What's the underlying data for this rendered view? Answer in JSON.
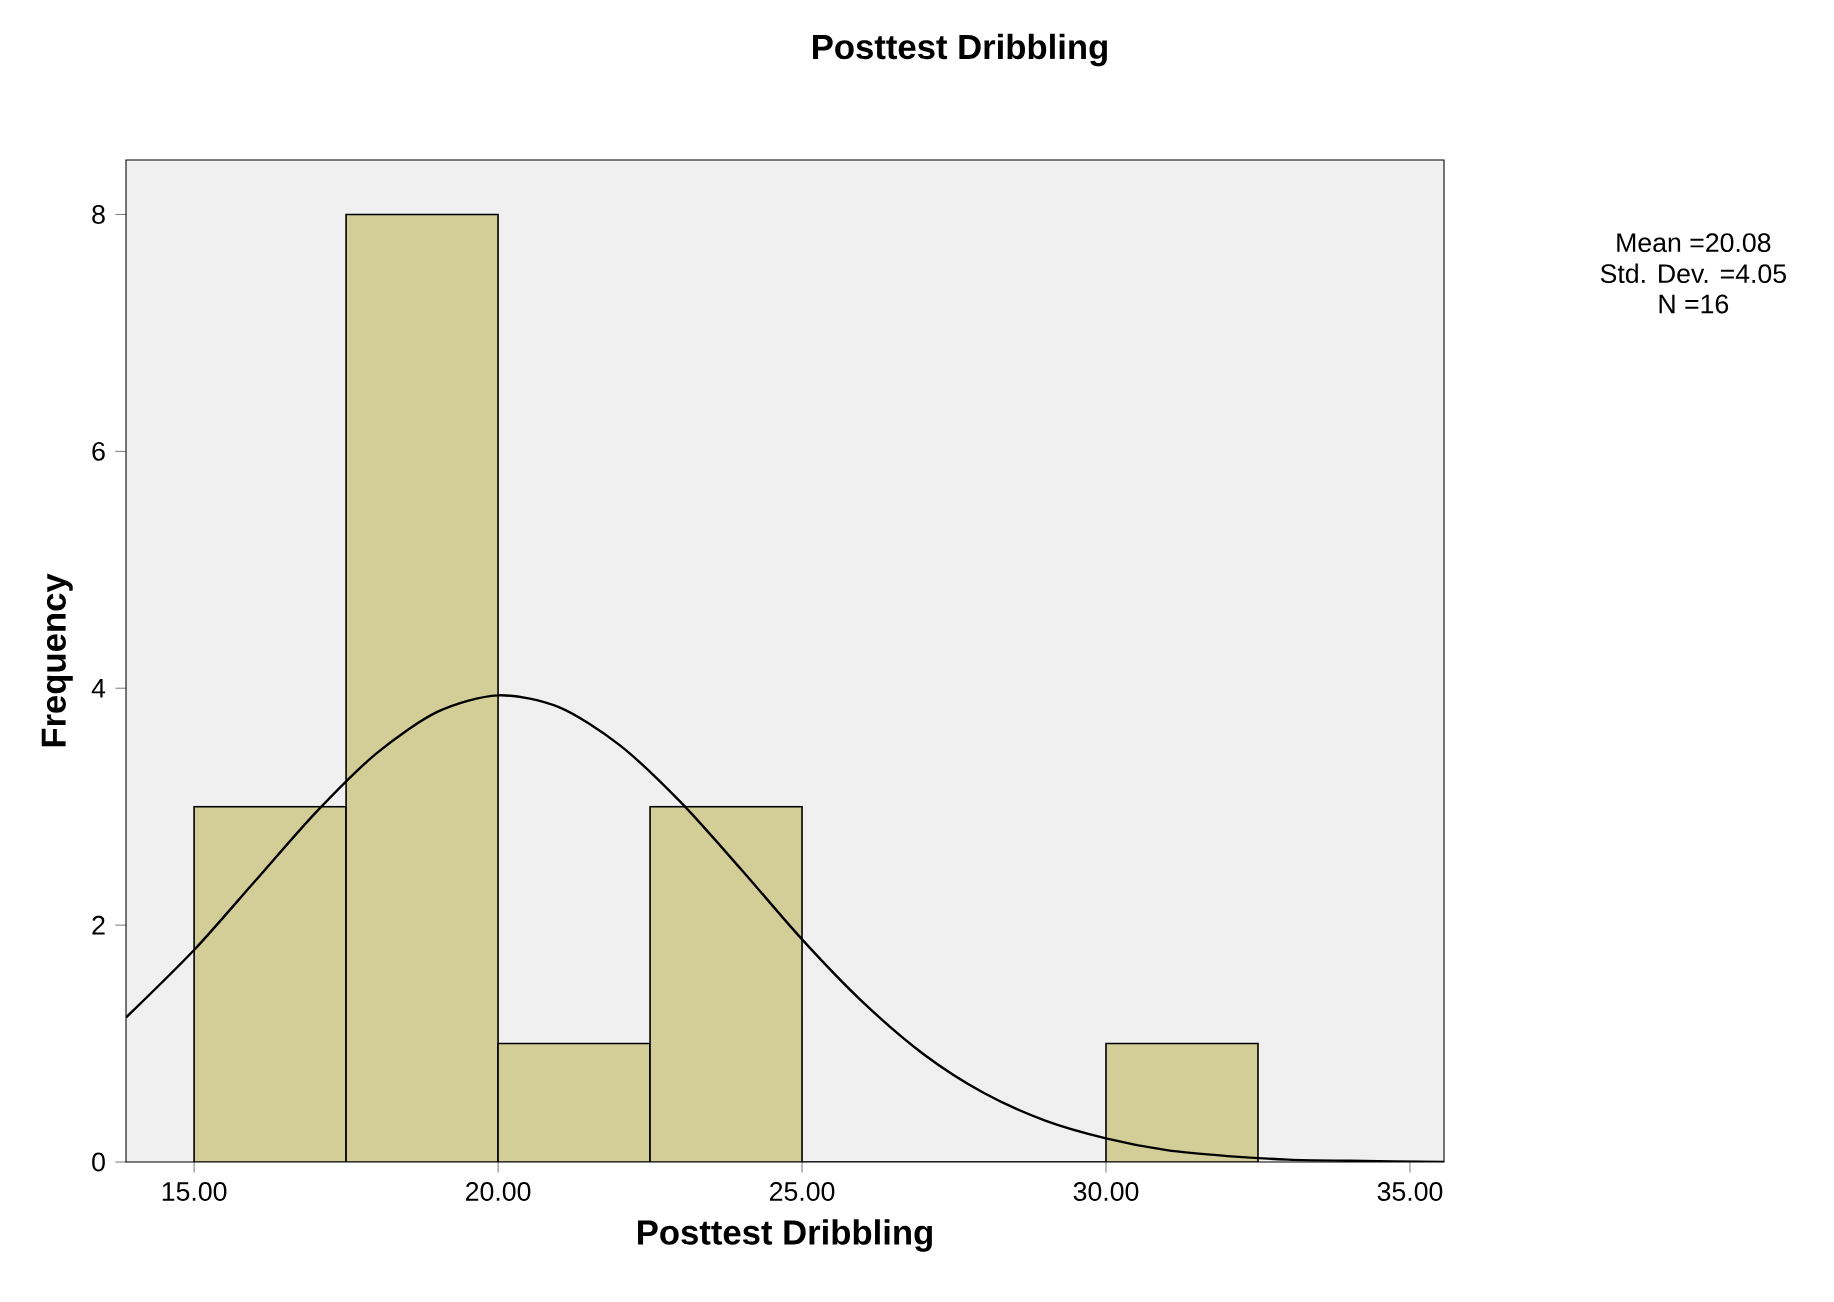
{
  "chart_data": {
    "type": "histogram",
    "title": "Posttest Dribbling",
    "xlabel": "Posttest Dribbling",
    "ylabel": "Frequency",
    "bins": [
      15,
      17.5,
      20,
      22.5,
      25,
      27.5,
      30,
      32.5
    ],
    "values": [
      3,
      8,
      1,
      3,
      0,
      0,
      1
    ],
    "color": "#d3ce97",
    "series": [
      {
        "type": "line",
        "color": "#000000",
        "x": [
          13.88,
          15,
          16,
          17,
          18,
          19,
          20,
          21,
          22,
          23,
          24,
          25,
          26,
          27,
          28,
          29,
          30,
          31,
          32,
          33,
          34,
          35.56
        ],
        "values": [
          1.22,
          1.79,
          2.37,
          2.95,
          3.45,
          3.8,
          3.94,
          3.84,
          3.52,
          3.04,
          2.47,
          1.88,
          1.35,
          0.91,
          0.58,
          0.35,
          0.2,
          0.1,
          0.05,
          0.02,
          0.01,
          0
        ]
      }
    ],
    "xlim": [
      13.88,
      35.56
    ],
    "ylim": [
      0,
      8.46
    ],
    "xticks": [
      {
        "value": 15,
        "label": "15.00"
      },
      {
        "value": 20,
        "label": "20.00"
      },
      {
        "value": 25,
        "label": "25.00"
      },
      {
        "value": 30,
        "label": "30.00"
      },
      {
        "value": 35,
        "label": "35.00"
      }
    ],
    "yticks": [
      0,
      2,
      4,
      6,
      8
    ],
    "annotations": [
      "Mean =20.08",
      "Std. Dev. =4.05",
      "N =16"
    ],
    "grid": false
  }
}
